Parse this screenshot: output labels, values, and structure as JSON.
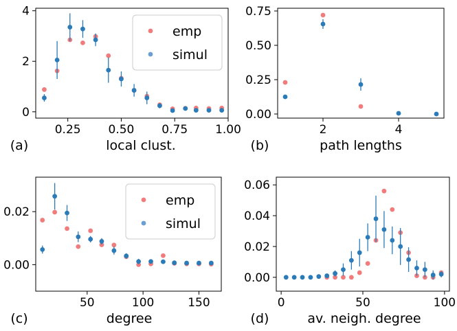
{
  "colors": {
    "emp": "#f07c7c",
    "simul": "#2b7bb9",
    "legend_simul": "#6a9fd0",
    "frame": "#000000"
  },
  "chart_data": [
    {
      "id": "a",
      "type": "scatter",
      "panel_label": "(a)",
      "xlabel": "local clust.",
      "ylabel": "",
      "xlim": [
        0.1,
        1.0
      ],
      "ylim": [
        -0.25,
        4.1
      ],
      "xticks": [
        0.25,
        0.5,
        0.75,
        1.0
      ],
      "xtick_labels": [
        "0.25",
        "0.50",
        "0.75",
        "1.00"
      ],
      "yticks": [
        0,
        2,
        4
      ],
      "ytick_labels": [
        "0",
        "2",
        "4"
      ],
      "legend": {
        "position": "top-right",
        "entries": [
          "emp",
          "simul"
        ]
      },
      "series": [
        {
          "name": "emp",
          "x": [
            0.14,
            0.2,
            0.26,
            0.32,
            0.38,
            0.44,
            0.5,
            0.56,
            0.62,
            0.68,
            0.74,
            0.8,
            0.85,
            0.91,
            0.97
          ],
          "y": [
            0.88,
            1.62,
            2.85,
            2.73,
            2.98,
            2.22,
            1.33,
            0.85,
            0.62,
            0.28,
            0.12,
            0.14,
            0.15,
            0.13,
            0.15
          ]
        },
        {
          "name": "simul",
          "x": [
            0.14,
            0.2,
            0.26,
            0.32,
            0.38,
            0.44,
            0.5,
            0.56,
            0.62,
            0.68,
            0.74,
            0.8,
            0.85,
            0.91,
            0.97
          ],
          "y": [
            0.55,
            2.05,
            3.35,
            3.28,
            2.85,
            1.65,
            1.3,
            0.85,
            0.55,
            0.24,
            0.05,
            0.13,
            0.06,
            0.06,
            0.06
          ],
          "err": [
            0.15,
            0.75,
            0.55,
            0.35,
            0.25,
            0.5,
            0.3,
            0.25,
            0.25,
            0.1,
            0.08,
            0.05,
            0.05,
            0.04,
            0.04
          ]
        }
      ]
    },
    {
      "id": "b",
      "type": "scatter",
      "panel_label": "(b)",
      "xlabel": "path lengths",
      "ylabel": "",
      "xlim": [
        0.8,
        5.2
      ],
      "ylim": [
        -0.03,
        0.77
      ],
      "xticks": [
        2,
        4
      ],
      "xtick_labels": [
        "2",
        "4"
      ],
      "yticks": [
        0.0,
        0.25,
        0.5,
        0.75
      ],
      "ytick_labels": [
        "0.00",
        "0.25",
        "0.50",
        "0.75"
      ],
      "series": [
        {
          "name": "emp",
          "x": [
            1,
            2,
            3
          ],
          "y": [
            0.23,
            0.72,
            0.055
          ]
        },
        {
          "name": "simul",
          "x": [
            1,
            2,
            3,
            4,
            5
          ],
          "y": [
            0.125,
            0.655,
            0.215,
            0.005,
            0.0
          ],
          "err": [
            0.008,
            0.035,
            0.045,
            0.008,
            0.004
          ]
        }
      ]
    },
    {
      "id": "c",
      "type": "scatter",
      "panel_label": "(c)",
      "xlabel": "degree",
      "ylabel": "",
      "xlim": [
        4,
        170
      ],
      "ylim": [
        -0.01,
        0.033
      ],
      "xticks": [
        50,
        100,
        150
      ],
      "xtick_labels": [
        "50",
        "100",
        "150"
      ],
      "yticks": [
        0.0,
        0.02
      ],
      "ytick_labels": [
        "0.00",
        "0.02"
      ],
      "legend": {
        "position": "top-right",
        "entries": [
          "emp",
          "simul"
        ]
      },
      "series": [
        {
          "name": "emp",
          "x": [
            10,
            21,
            32,
            42,
            53,
            63,
            74,
            85,
            96,
            107,
            118,
            128,
            139,
            150,
            161
          ],
          "y": [
            0.0168,
            0.0198,
            0.0136,
            0.0068,
            0.0128,
            0.0075,
            0.0074,
            0.003,
            0.0,
            0.0003,
            0.0034,
            0.0005,
            0.0003,
            0.0003,
            0.0002
          ]
        },
        {
          "name": "simul",
          "x": [
            10,
            21,
            32,
            42,
            53,
            63,
            74,
            85,
            96,
            107,
            118,
            128,
            139,
            150,
            161
          ],
          "y": [
            0.0057,
            0.0258,
            0.0195,
            0.0105,
            0.0096,
            0.0088,
            0.0053,
            0.0033,
            0.0012,
            0.0012,
            0.0011,
            0.0007,
            0.0006,
            0.0006,
            0.0006
          ],
          "err": [
            0.0015,
            0.005,
            0.003,
            0.002,
            0.0012,
            0.0012,
            0.0015,
            0.001,
            0.001,
            0.0008,
            0.0006,
            0.0006,
            0.0006,
            0.0006,
            0.0006
          ]
        }
      ]
    },
    {
      "id": "d",
      "type": "scatter",
      "panel_label": "(d)",
      "xlabel": "av. neigh. degree",
      "ylabel": "",
      "xlim": [
        -3,
        103
      ],
      "ylim": [
        -0.009,
        0.065
      ],
      "xticks": [
        0,
        50,
        100
      ],
      "xtick_labels": [
        "0",
        "50",
        "100"
      ],
      "yticks": [
        0.0,
        0.02,
        0.04,
        0.06
      ],
      "ytick_labels": [
        "0.00",
        "0.02",
        "0.04",
        "0.06"
      ],
      "series": [
        {
          "name": "emp",
          "x": [
            28,
            33,
            38,
            43,
            48,
            53,
            58,
            63,
            68,
            73,
            78,
            83,
            88,
            93,
            98
          ],
          "y": [
            0.0,
            0.0,
            0.0,
            0.0,
            0.003,
            0.009,
            0.024,
            0.056,
            0.044,
            0.029,
            0.016,
            0.001,
            0.0,
            0.0,
            0.003
          ]
        },
        {
          "name": "simul",
          "x": [
            3,
            8,
            13,
            18,
            23,
            28,
            33,
            38,
            43,
            48,
            53,
            58,
            63,
            68,
            73,
            78,
            83,
            88,
            93,
            98
          ],
          "y": [
            0.0,
            0.0,
            0.0,
            0.0,
            0.0005,
            0.001,
            0.0025,
            0.005,
            0.011,
            0.016,
            0.026,
            0.038,
            0.031,
            0.024,
            0.02,
            0.0115,
            0.006,
            0.005,
            0.0015,
            0.002
          ],
          "err": [
            0.0003,
            0.0003,
            0.0003,
            0.0004,
            0.0006,
            0.001,
            0.002,
            0.004,
            0.006,
            0.009,
            0.009,
            0.015,
            0.012,
            0.009,
            0.012,
            0.008,
            0.005,
            0.005,
            0.003,
            0.002
          ]
        }
      ]
    }
  ]
}
